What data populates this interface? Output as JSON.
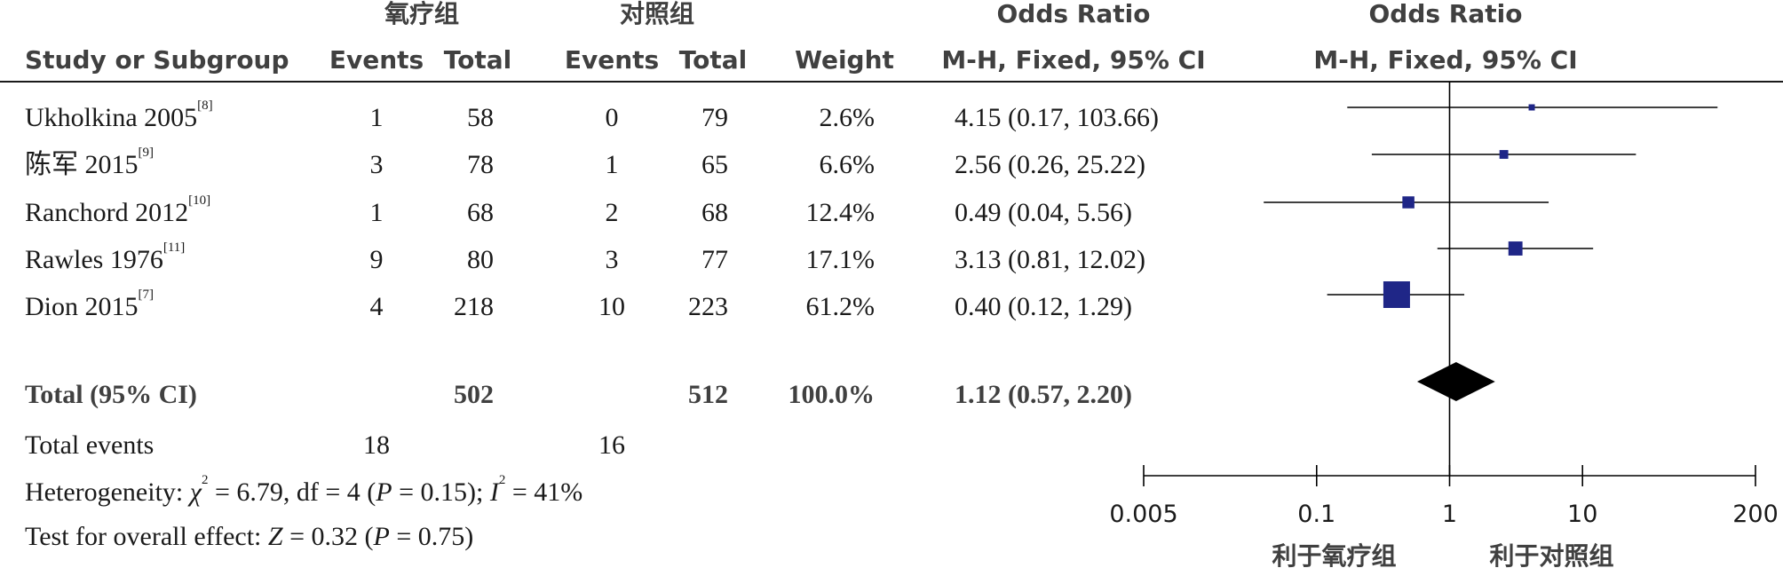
{
  "header": {
    "group1": "氧疗组",
    "group2": "对照组",
    "or_title_left": "Odds Ratio",
    "or_title_right": "Odds Ratio",
    "col_study": "Study or Subgroup",
    "col_events1": "Events",
    "col_total1": "Total",
    "col_events2": "Events",
    "col_total2": "Total",
    "col_weight": "Weight",
    "col_method_left": "M-H, Fixed, 95% CI",
    "col_method_right": "M-H, Fixed, 95% CI"
  },
  "studies": [
    {
      "name": "Ukholkina 2005",
      "ref": "[8]",
      "e1": "1",
      "t1": "58",
      "e2": "0",
      "t2": "79",
      "weight": "2.6%",
      "ci_text": "4.15 (0.17, 103.66)"
    },
    {
      "name": "陈军 2015",
      "ref": "[9]",
      "e1": "3",
      "t1": "78",
      "e2": "1",
      "t2": "65",
      "weight": "6.6%",
      "ci_text": "2.56 (0.26, 25.22)"
    },
    {
      "name": "Ranchord 2012",
      "ref": "[10]",
      "e1": "1",
      "t1": "68",
      "e2": "2",
      "t2": "68",
      "weight": "12.4%",
      "ci_text": "0.49 (0.04, 5.56)"
    },
    {
      "name": "Rawles 1976",
      "ref": "[11]",
      "e1": "9",
      "t1": "80",
      "e2": "3",
      "t2": "77",
      "weight": "17.1%",
      "ci_text": "3.13 (0.81, 12.02)"
    },
    {
      "name": "Dion 2015",
      "ref": "[7]",
      "e1": "4",
      "t1": "218",
      "e2": "10",
      "t2": "223",
      "weight": "61.2%",
      "ci_text": "0.40 (0.12, 1.29)"
    }
  ],
  "total": {
    "label": "Total (95% CI)",
    "t1": "502",
    "t2": "512",
    "weight": "100.0%",
    "ci_text": "1.12 (0.57, 2.20)"
  },
  "total_events": {
    "label": "Total events",
    "e1": "18",
    "e2": "16"
  },
  "heterogeneity": {
    "prefix": "Heterogeneity: ",
    "chi": "χ",
    "chi_rest": " = 6.79, df = 4 (",
    "p": "P",
    "p_rest": " = 0.15); ",
    "i": "I",
    "i_rest": " = 41%"
  },
  "overall": {
    "prefix": "Test for overall effect: ",
    "z": "Z",
    "z_rest": " = 0.32 (",
    "p": "P",
    "p_rest": " = 0.75)"
  },
  "axis": {
    "ticks": [
      "0.005",
      "0.1",
      "1",
      "10",
      "200"
    ],
    "favours_left": "利于氧疗组",
    "favours_right": "利于对照组"
  },
  "chart_data": {
    "type": "forest",
    "scale": "log",
    "xlim": [
      0.005,
      200
    ],
    "reference_line": 1,
    "studies": [
      {
        "name": "Ukholkina 2005",
        "or": 4.15,
        "lo": 0.17,
        "hi": 103.66,
        "weight": 2.6
      },
      {
        "name": "陈军 2015",
        "or": 2.56,
        "lo": 0.26,
        "hi": 25.22,
        "weight": 6.6
      },
      {
        "name": "Ranchord 2012",
        "or": 0.49,
        "lo": 0.04,
        "hi": 5.56,
        "weight": 12.4
      },
      {
        "name": "Rawles 1976",
        "or": 3.13,
        "lo": 0.81,
        "hi": 12.02,
        "weight": 17.1
      },
      {
        "name": "Dion 2015",
        "or": 0.4,
        "lo": 0.12,
        "hi": 1.29,
        "weight": 61.2
      }
    ],
    "pooled": {
      "or": 1.12,
      "lo": 0.57,
      "hi": 2.2
    },
    "colors": {
      "marker": "#1f2687",
      "diamond": "#000000",
      "line": "#000000"
    }
  }
}
